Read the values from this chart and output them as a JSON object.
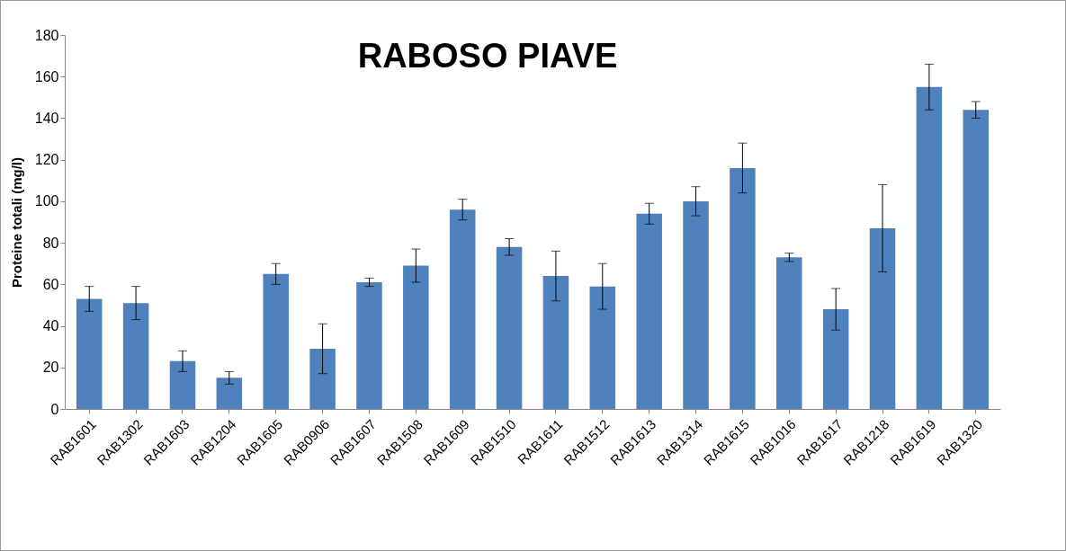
{
  "chart_data": {
    "type": "bar",
    "title": "RABOSO PIAVE",
    "ylabel": "Proteine totali (mg/l)",
    "categories": [
      "RAB1601",
      "RAB1302",
      "RAB1603",
      "RAB1204",
      "RAB1605",
      "RAB0906",
      "RAB1607",
      "RAB1508",
      "RAB1609",
      "RAB1510",
      "RAB1611",
      "RAB1512",
      "RAB1613",
      "RAB1314",
      "RAB1615",
      "RAB1016",
      "RAB1617",
      "RAB1218",
      "RAB1619",
      "RAB1320"
    ],
    "values": [
      53,
      51,
      23,
      15,
      65,
      29,
      61,
      69,
      96,
      78,
      64,
      59,
      94,
      100,
      116,
      73,
      48,
      87,
      155,
      144
    ],
    "errors": [
      6,
      8,
      5,
      3,
      5,
      12,
      2,
      8,
      5,
      4,
      12,
      11,
      5,
      7,
      12,
      2,
      10,
      21,
      11,
      4
    ],
    "color": "#4f81bd",
    "ylim": [
      0,
      180
    ],
    "yticks": [
      0,
      20,
      40,
      60,
      80,
      100,
      120,
      140,
      160,
      180
    ],
    "grid": false
  }
}
